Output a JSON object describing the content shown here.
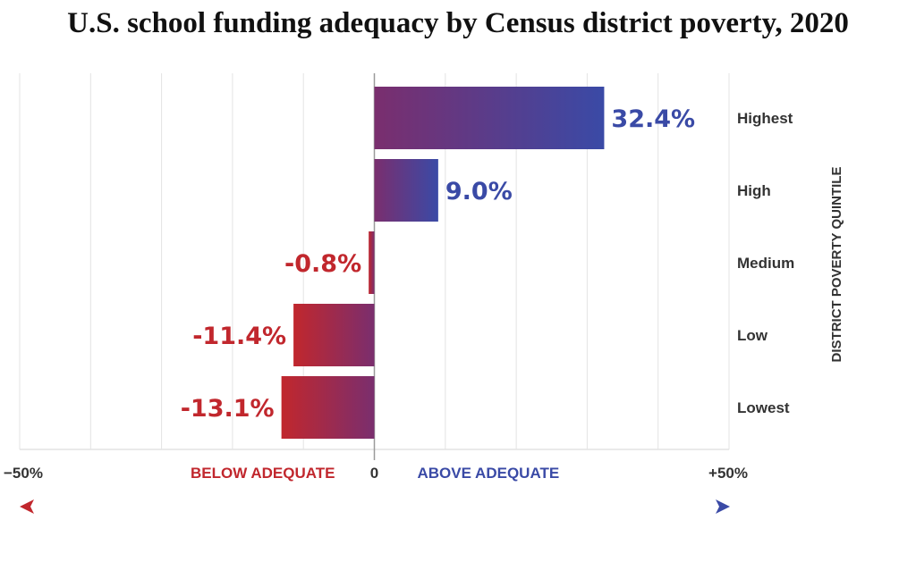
{
  "title": "U.S. school funding adequacy by Census district poverty, 2020",
  "colors": {
    "below": "#c1272d",
    "above": "#3a4aa6",
    "mid": "#7a2e6e",
    "grid": "#e3e3e3",
    "axis": "#9a9a9a",
    "text": "#333333"
  },
  "chart_data": {
    "type": "bar",
    "orientation": "horizontal",
    "title": "U.S. school funding adequacy by Census district poverty, 2020",
    "ylabel": "DISTRICT POVERTY QUINTILE",
    "categories": [
      "Highest",
      "High",
      "Medium",
      "Low",
      "Lowest"
    ],
    "values": [
      32.4,
      9.0,
      -0.8,
      -11.4,
      -13.1
    ],
    "value_labels": [
      "32.4%",
      "9.0%",
      "-0.8%",
      "-11.4%",
      "-13.1%"
    ],
    "xlim": [
      -50,
      50
    ],
    "xticks": [
      {
        "value": -50,
        "label": "−50%"
      },
      {
        "value": 0,
        "label": "0"
      },
      {
        "value": 50,
        "label": "+50%"
      }
    ],
    "direction_labels": {
      "below": "BELOW ADEQUATE",
      "above": "ABOVE ADEQUATE"
    },
    "grid": true
  }
}
